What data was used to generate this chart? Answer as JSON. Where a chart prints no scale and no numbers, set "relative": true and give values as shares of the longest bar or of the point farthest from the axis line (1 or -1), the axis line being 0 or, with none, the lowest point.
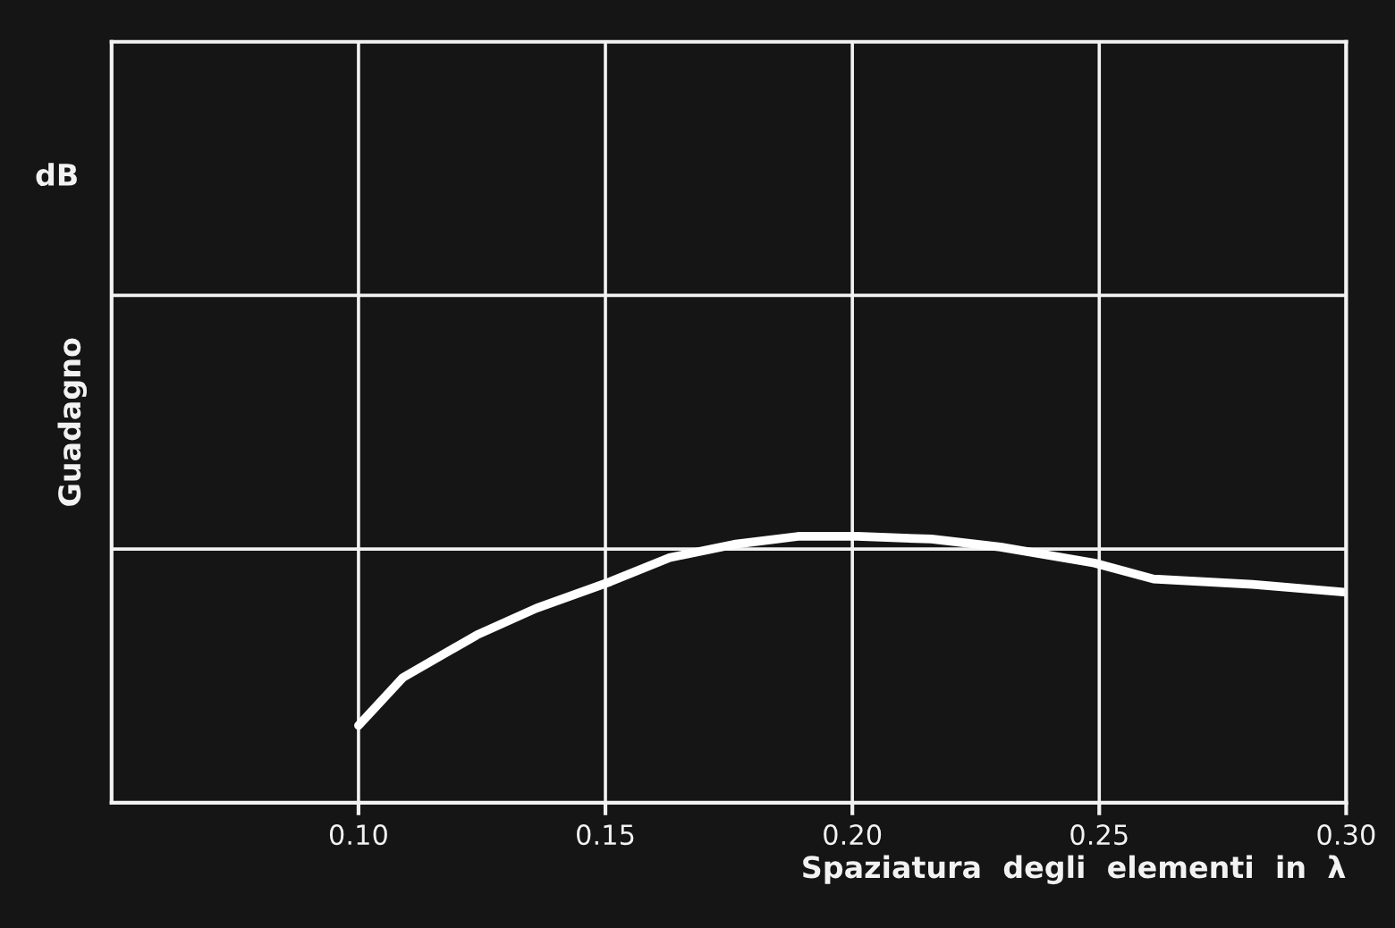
{
  "chart_data": {
    "type": "line",
    "relative": true,
    "xlabel": "Spaziatura  degli  elementi  in  λ",
    "ylabel": "Guadagno",
    "annotations": [
      "dB"
    ],
    "xlim": [
      0.05,
      0.3
    ],
    "xticks": [
      {
        "value": 0.1,
        "label": "0.10"
      },
      {
        "value": 0.15,
        "label": "0.15"
      },
      {
        "value": 0.2,
        "label": "0.20"
      },
      {
        "value": 0.25,
        "label": "0.25"
      },
      {
        "value": 0.3,
        "label": "0.30"
      }
    ],
    "grid": true,
    "marker": "none",
    "line_style": "solid",
    "series": [
      {
        "color": "#ffffff",
        "x": [
          0.1,
          0.109,
          0.124,
          0.136,
          0.151,
          0.163,
          0.176,
          0.189,
          0.201,
          0.216,
          0.23,
          0.249,
          0.261,
          0.281,
          0.3
        ],
        "values": [
          0.29,
          0.47,
          0.63,
          0.73,
          0.83,
          0.92,
          0.97,
          1,
          1,
          0.99,
          0.96,
          0.9,
          0.84,
          0.82,
          0.79
        ]
      }
    ]
  }
}
